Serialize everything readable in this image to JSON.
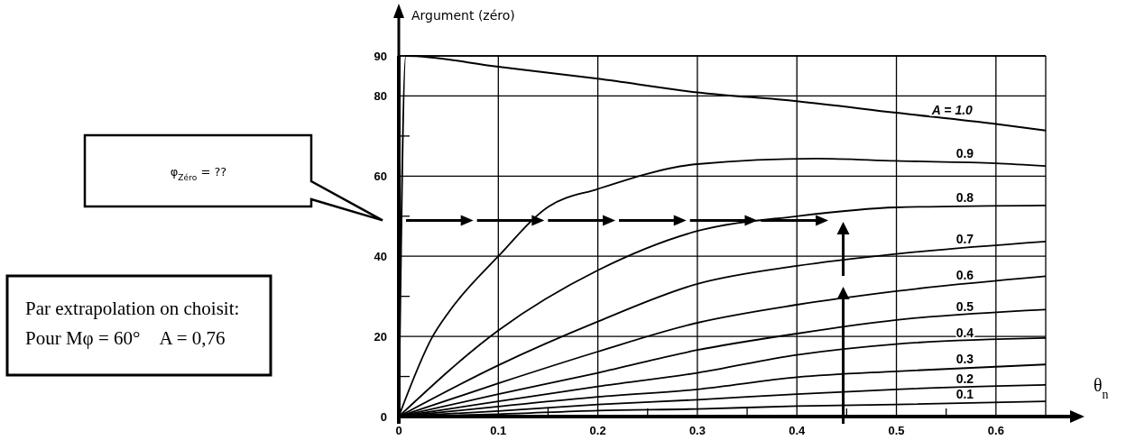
{
  "chart_data": {
    "type": "line",
    "xlabel": "θ$_{n}$",
    "ylabel": "Argument (zéro)",
    "xlim": [
      0,
      0.65
    ],
    "ylim": [
      0,
      90
    ],
    "xticks": [
      0,
      0.1,
      0.2,
      0.3,
      0.4,
      0.5,
      0.6,
      {
        "value": 0.15,
        "label": null
      },
      {
        "value": 0.25,
        "label": null
      },
      {
        "value": 0.35,
        "label": null
      },
      {
        "value": 0.45,
        "label": null
      },
      {
        "value": 0.55,
        "label": null
      }
    ],
    "yticks": [
      0,
      20,
      40,
      60,
      80,
      90,
      {
        "value": 10,
        "label": null
      },
      {
        "value": 30,
        "label": null
      },
      {
        "value": 50,
        "label": null
      },
      {
        "value": 70,
        "label": null
      }
    ],
    "grid": true,
    "marker": "none",
    "line_style": "solid",
    "series": [
      {
        "name": "A = 1.0",
        "color": "#000000",
        "x": [
          0,
          0.007,
          0.1,
          0.2,
          0.3,
          0.4,
          0.5,
          0.6,
          0.65
        ],
        "values": [
          0,
          90,
          87.3,
          84.3,
          80.9,
          78.7,
          75.8,
          73.0,
          71.4
        ]
      },
      {
        "name": "0.9",
        "color": "#000000",
        "x": [
          0,
          0.034,
          0.05,
          0.1,
          0.15,
          0.2,
          0.3,
          0.42,
          0.5,
          0.6,
          0.65
        ],
        "values": [
          0,
          20,
          26,
          40,
          52.3,
          56.8,
          63.0,
          64.4,
          63.8,
          63.2,
          62.5
        ]
      },
      {
        "name": "0.8",
        "color": "#000000",
        "x": [
          0,
          0.1,
          0.2,
          0.3,
          0.4,
          0.5,
          0.65
        ],
        "values": [
          0,
          21.5,
          36.5,
          46.3,
          50.0,
          52.2,
          52.7
        ]
      },
      {
        "name": "0.7",
        "color": "#000000",
        "x": [
          0,
          0.1,
          0.2,
          0.3,
          0.4,
          0.5,
          0.65
        ],
        "values": [
          0,
          12.8,
          23.7,
          33.1,
          37.6,
          40.6,
          43.7
        ]
      },
      {
        "name": "0.6",
        "color": "#000000",
        "x": [
          0,
          0.1,
          0.2,
          0.3,
          0.4,
          0.5,
          0.65
        ],
        "values": [
          0,
          8.3,
          16.2,
          23.4,
          27.9,
          31.3,
          35.0
        ]
      },
      {
        "name": "0.5",
        "color": "#000000",
        "x": [
          0,
          0.1,
          0.2,
          0.3,
          0.4,
          0.5,
          0.65
        ],
        "values": [
          0,
          5.6,
          10.9,
          16.6,
          20.7,
          24.1,
          26.7
        ]
      },
      {
        "name": "0.4",
        "color": "#000000",
        "x": [
          0,
          0.1,
          0.2,
          0.3,
          0.4,
          0.5,
          0.65
        ],
        "values": [
          0,
          3.8,
          7.5,
          10.9,
          15.4,
          18.1,
          19.6
        ]
      },
      {
        "name": "0.3",
        "color": "#000000",
        "x": [
          0,
          0.1,
          0.2,
          0.3,
          0.4,
          0.5,
          0.65
        ],
        "values": [
          0,
          2.5,
          4.9,
          6.8,
          9.8,
          11.3,
          13.0
        ]
      },
      {
        "name": "0.2",
        "color": "#000000",
        "x": [
          0,
          0.1,
          0.2,
          0.3,
          0.4,
          0.5,
          0.65
        ],
        "values": [
          0,
          1.4,
          3.0,
          4.2,
          5.6,
          6.8,
          7.9
        ]
      },
      {
        "name": "0.1",
        "color": "#000000",
        "x": [
          0,
          0.1,
          0.2,
          0.3,
          0.4,
          0.5,
          0.65
        ],
        "values": [
          0,
          0.6,
          1.5,
          1.9,
          2.6,
          3.0,
          3.8
        ]
      }
    ],
    "annotations": [
      "φ$_{Zéro}$ = ??",
      "Par extrapolation on choisit:\nPour Mφ = 60°    A = 0,76"
    ]
  }
}
